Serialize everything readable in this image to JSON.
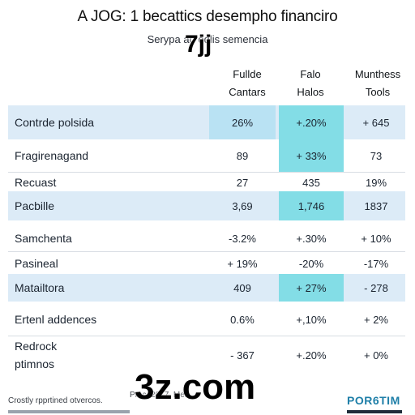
{
  "title": "A JOG: 1 becattics desempho financiro",
  "subtitle": "Serypa ad odlis semencia",
  "watermark_top": "7jj",
  "columns": [
    {
      "line1": "Fullde",
      "line2": "Cantars"
    },
    {
      "line1": "Falo",
      "line2": "Halos"
    },
    {
      "line1": "Munthess",
      "line2": "Tools"
    }
  ],
  "rows": [
    {
      "label": [
        "Contrde polsida"
      ],
      "values": [
        "26%",
        "+.20%",
        "+ 645"
      ]
    },
    {
      "label": [
        "Fragirenagand"
      ],
      "values": [
        "89",
        "+ 33%",
        "73"
      ]
    },
    {
      "label": [
        "Recuast"
      ],
      "values": [
        "27",
        "435",
        "19%"
      ]
    },
    {
      "label": [
        "Pacbille"
      ],
      "values": [
        "3,69",
        "1,746",
        "1837"
      ]
    },
    {
      "label": [
        "Samchenta"
      ],
      "values": [
        "-3.2%",
        "+.30%",
        "+ 10%"
      ]
    },
    {
      "label": [
        "Pasineal"
      ],
      "values": [
        "+ 19%",
        "-20%",
        "-17%"
      ]
    },
    {
      "label": [
        "Matailtora"
      ],
      "values": [
        "409",
        "+ 27%",
        "- 278"
      ]
    },
    {
      "label": [
        "Ertenl addences"
      ],
      "values": [
        "0.6%",
        "+,10%",
        "+ 2%"
      ]
    },
    {
      "label": [
        "Redrock",
        "ptimnos"
      ],
      "values": [
        "- 367",
        "+.20%",
        "+ 0%"
      ]
    }
  ],
  "footer_left": "Crostly rpprtined otvercos.",
  "footer_mid": "Proc.  2017. Mer",
  "logo": "POR6TIM",
  "watermark_bottom": "3z.com",
  "colors": {
    "tint": "#dcebf7",
    "highlight_light": "#b9e2f3",
    "highlight_teal": "#83dde6",
    "logo": "#1f7fa8"
  }
}
